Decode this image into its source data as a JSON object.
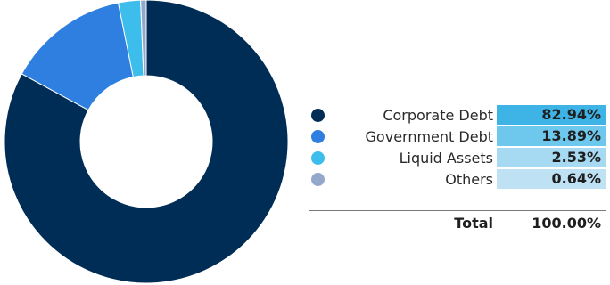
{
  "chart_data": {
    "type": "pie",
    "donut": true,
    "series": [
      {
        "name": "Corporate Debt",
        "value": 82.94,
        "label": "82.94%",
        "color": "#002d55",
        "cell_color": "#3db3e6"
      },
      {
        "name": "Government Debt",
        "value": 13.89,
        "label": "13.89%",
        "color": "#2e7fe0",
        "cell_color": "#6ec8ee"
      },
      {
        "name": "Liquid Assets",
        "value": 2.53,
        "label": "2.53%",
        "color": "#3dbdec",
        "cell_color": "#a6d9f2"
      },
      {
        "name": "Others",
        "value": 0.64,
        "label": "0.64%",
        "color": "#94a8cc",
        "cell_color": "#bfe1f4"
      }
    ],
    "total": {
      "label": "Total",
      "value": "100.00%"
    }
  }
}
